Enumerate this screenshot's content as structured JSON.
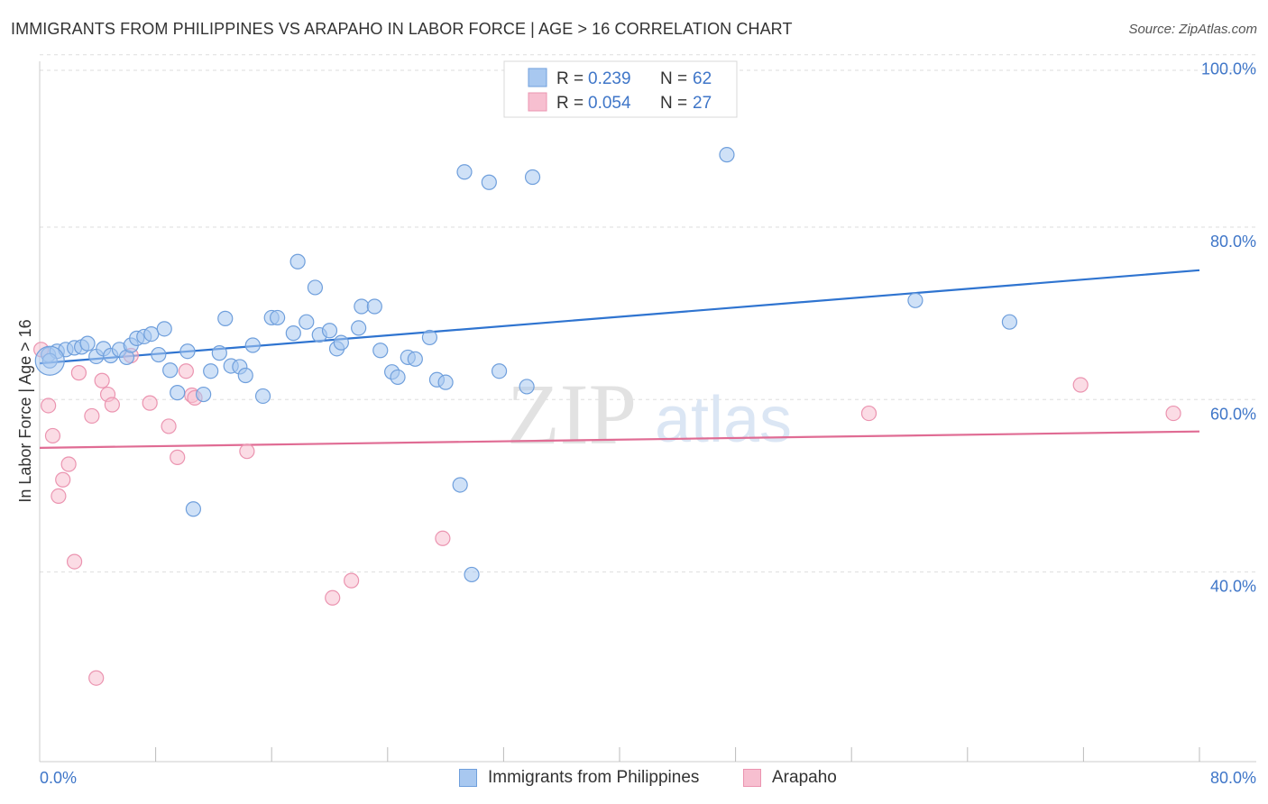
{
  "title": "IMMIGRANTS FROM PHILIPPINES VS ARAPAHO IN LABOR FORCE | AGE > 16 CORRELATION CHART",
  "source": "Source: ZipAtlas.com",
  "watermark": {
    "zip": "ZIP",
    "atlas": "atlas"
  },
  "colors": {
    "blue_fill": "#a8c8f0",
    "blue_stroke": "#6f9fdc",
    "blue_line": "#2f74d0",
    "pink_fill": "#f7bfd0",
    "pink_stroke": "#eb94b0",
    "pink_line": "#e06c94",
    "tick_text": "#3f76c8"
  },
  "legend": {
    "items": [
      {
        "r_label": "R =",
        "r_value": "0.239",
        "n_label": "N =",
        "n_value": "62"
      },
      {
        "r_label": "R =",
        "r_value": "0.054",
        "n_label": "N =",
        "n_value": "27"
      }
    ]
  },
  "bottom_legend": {
    "items": [
      "Immigrants from Philippines",
      "Arapaho"
    ]
  },
  "chart_data": {
    "type": "scatter",
    "title": "IMMIGRANTS FROM PHILIPPINES VS ARAPAHO IN LABOR FORCE | AGE > 16 CORRELATION CHART",
    "xlabel": "",
    "ylabel": "In Labor Force | Age > 16",
    "xlim": [
      0,
      80
    ],
    "ylim": [
      18,
      103
    ],
    "x_tick_labels": [
      "0.0%",
      "80.0%"
    ],
    "y_tick_values": [
      40,
      60,
      80,
      100
    ],
    "y_tick_labels": [
      "40.0%",
      "60.0%",
      "80.0%",
      "100.0%"
    ],
    "grid": true,
    "legend_position": "top-center",
    "series": [
      {
        "name": "Immigrants from Philippines",
        "r": 0.239,
        "n": 62,
        "trend": {
          "x": [
            0,
            80
          ],
          "y": [
            64.2,
            75.0
          ]
        },
        "points": [
          [
            0.6,
            65.2
          ],
          [
            1.2,
            65.6
          ],
          [
            1.8,
            65.8
          ],
          [
            2.4,
            66.0
          ],
          [
            2.9,
            66.1
          ],
          [
            3.3,
            66.5
          ],
          [
            3.9,
            65.0
          ],
          [
            4.4,
            65.9
          ],
          [
            4.9,
            65.1
          ],
          [
            5.5,
            65.8
          ],
          [
            6.0,
            64.9
          ],
          [
            6.3,
            66.3
          ],
          [
            6.7,
            67.1
          ],
          [
            7.2,
            67.3
          ],
          [
            7.7,
            67.6
          ],
          [
            8.2,
            65.2
          ],
          [
            8.6,
            68.2
          ],
          [
            9.0,
            63.4
          ],
          [
            9.5,
            60.8
          ],
          [
            10.2,
            65.6
          ],
          [
            10.6,
            47.3
          ],
          [
            11.3,
            60.6
          ],
          [
            11.8,
            63.3
          ],
          [
            12.4,
            65.4
          ],
          [
            12.8,
            69.4
          ],
          [
            13.2,
            63.9
          ],
          [
            13.8,
            63.8
          ],
          [
            14.2,
            62.8
          ],
          [
            14.7,
            66.3
          ],
          [
            15.4,
            60.4
          ],
          [
            16.0,
            69.5
          ],
          [
            16.4,
            69.5
          ],
          [
            17.5,
            67.7
          ],
          [
            17.8,
            76.0
          ],
          [
            18.4,
            69.0
          ],
          [
            19.0,
            73.0
          ],
          [
            19.3,
            67.5
          ],
          [
            20.0,
            68.0
          ],
          [
            20.5,
            65.9
          ],
          [
            20.8,
            66.6
          ],
          [
            22.0,
            68.3
          ],
          [
            22.2,
            70.8
          ],
          [
            23.1,
            70.8
          ],
          [
            23.5,
            65.7
          ],
          [
            24.3,
            63.2
          ],
          [
            24.7,
            62.6
          ],
          [
            25.4,
            64.9
          ],
          [
            25.9,
            64.7
          ],
          [
            26.9,
            67.2
          ],
          [
            27.4,
            62.3
          ],
          [
            28.0,
            62.0
          ],
          [
            29.0,
            50.1
          ],
          [
            29.3,
            86.4
          ],
          [
            29.8,
            39.7
          ],
          [
            31.0,
            85.2
          ],
          [
            31.7,
            63.3
          ],
          [
            33.6,
            61.5
          ],
          [
            34.0,
            85.8
          ],
          [
            47.4,
            88.4
          ],
          [
            60.4,
            71.5
          ],
          [
            66.9,
            69.0
          ],
          [
            0.7,
            64.5
          ]
        ]
      },
      {
        "name": "Arapaho",
        "r": 0.054,
        "n": 27,
        "trend": {
          "x": [
            0,
            80
          ],
          "y": [
            54.4,
            56.3
          ]
        },
        "points": [
          [
            0.1,
            65.8
          ],
          [
            0.6,
            59.3
          ],
          [
            0.9,
            55.8
          ],
          [
            1.3,
            48.8
          ],
          [
            1.6,
            50.7
          ],
          [
            2.0,
            52.5
          ],
          [
            2.4,
            41.2
          ],
          [
            2.7,
            63.1
          ],
          [
            3.6,
            58.1
          ],
          [
            3.9,
            27.7
          ],
          [
            4.3,
            62.2
          ],
          [
            4.7,
            60.6
          ],
          [
            5.0,
            59.4
          ],
          [
            6.3,
            65.1
          ],
          [
            7.6,
            59.6
          ],
          [
            8.9,
            56.9
          ],
          [
            9.5,
            53.3
          ],
          [
            10.1,
            63.3
          ],
          [
            10.5,
            60.5
          ],
          [
            10.7,
            60.2
          ],
          [
            14.3,
            54.0
          ],
          [
            20.2,
            37.0
          ],
          [
            21.5,
            39.0
          ],
          [
            27.8,
            43.9
          ],
          [
            57.2,
            58.4
          ],
          [
            71.8,
            61.7
          ],
          [
            78.2,
            58.4
          ]
        ]
      }
    ]
  }
}
